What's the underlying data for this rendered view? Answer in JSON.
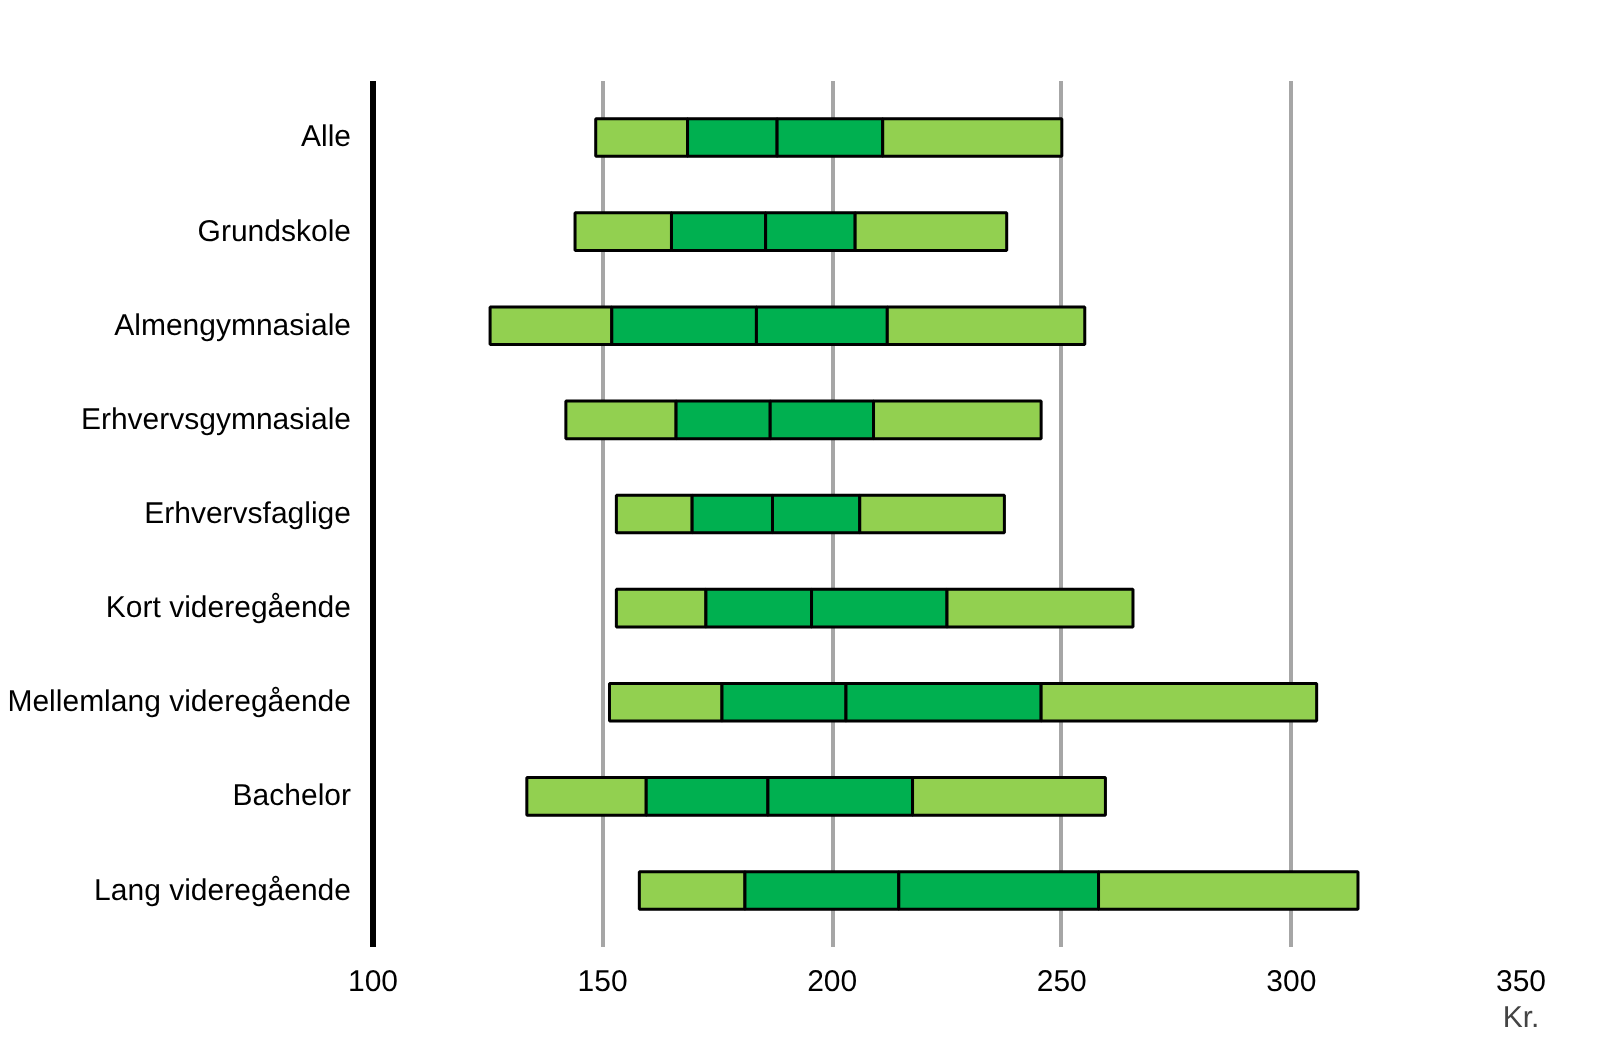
{
  "chart_data": {
    "type": "bar",
    "orientation": "horizontal",
    "categories": [
      "Alle",
      "Grundskole",
      "Almengymnasiale",
      "Erhvervsgymnasiale",
      "Erhvervsfaglige",
      "Kort videregående",
      "Mellemlang videregående",
      "Bachelor",
      "Lang videregående"
    ],
    "series": [
      {
        "color": "#92d050",
        "base": [
          148.5,
          144,
          125.5,
          142,
          153,
          153,
          151.5,
          133.5,
          158
        ],
        "values": [
          20,
          21,
          26.5,
          24,
          16.5,
          19.5,
          24.5,
          26,
          23
        ]
      },
      {
        "color": "#00b050",
        "base": [
          168.5,
          165,
          152,
          166,
          169.5,
          172.5,
          176,
          159.5,
          181
        ],
        "values": [
          19.5,
          20.5,
          31.5,
          20.5,
          17.5,
          23,
          27,
          26.5,
          33.5
        ]
      },
      {
        "color": "#00b050",
        "base": [
          188,
          185.5,
          183.5,
          186.5,
          187,
          195.5,
          203,
          186,
          214.5
        ],
        "values": [
          23,
          19.5,
          28.5,
          22.5,
          19,
          29.5,
          42.5,
          31.5,
          43.5
        ]
      },
      {
        "color": "#92d050",
        "base": [
          211,
          205,
          212,
          209,
          206,
          225,
          245.5,
          217.5,
          258
        ],
        "values": [
          39,
          33,
          43,
          36.5,
          31.5,
          40.5,
          60,
          42,
          56.5
        ]
      }
    ],
    "xlim": [
      100,
      350
    ],
    "xticks": [
      100,
      150,
      200,
      250,
      300,
      350
    ],
    "xlabel": "Kr.",
    "grid": "x"
  }
}
